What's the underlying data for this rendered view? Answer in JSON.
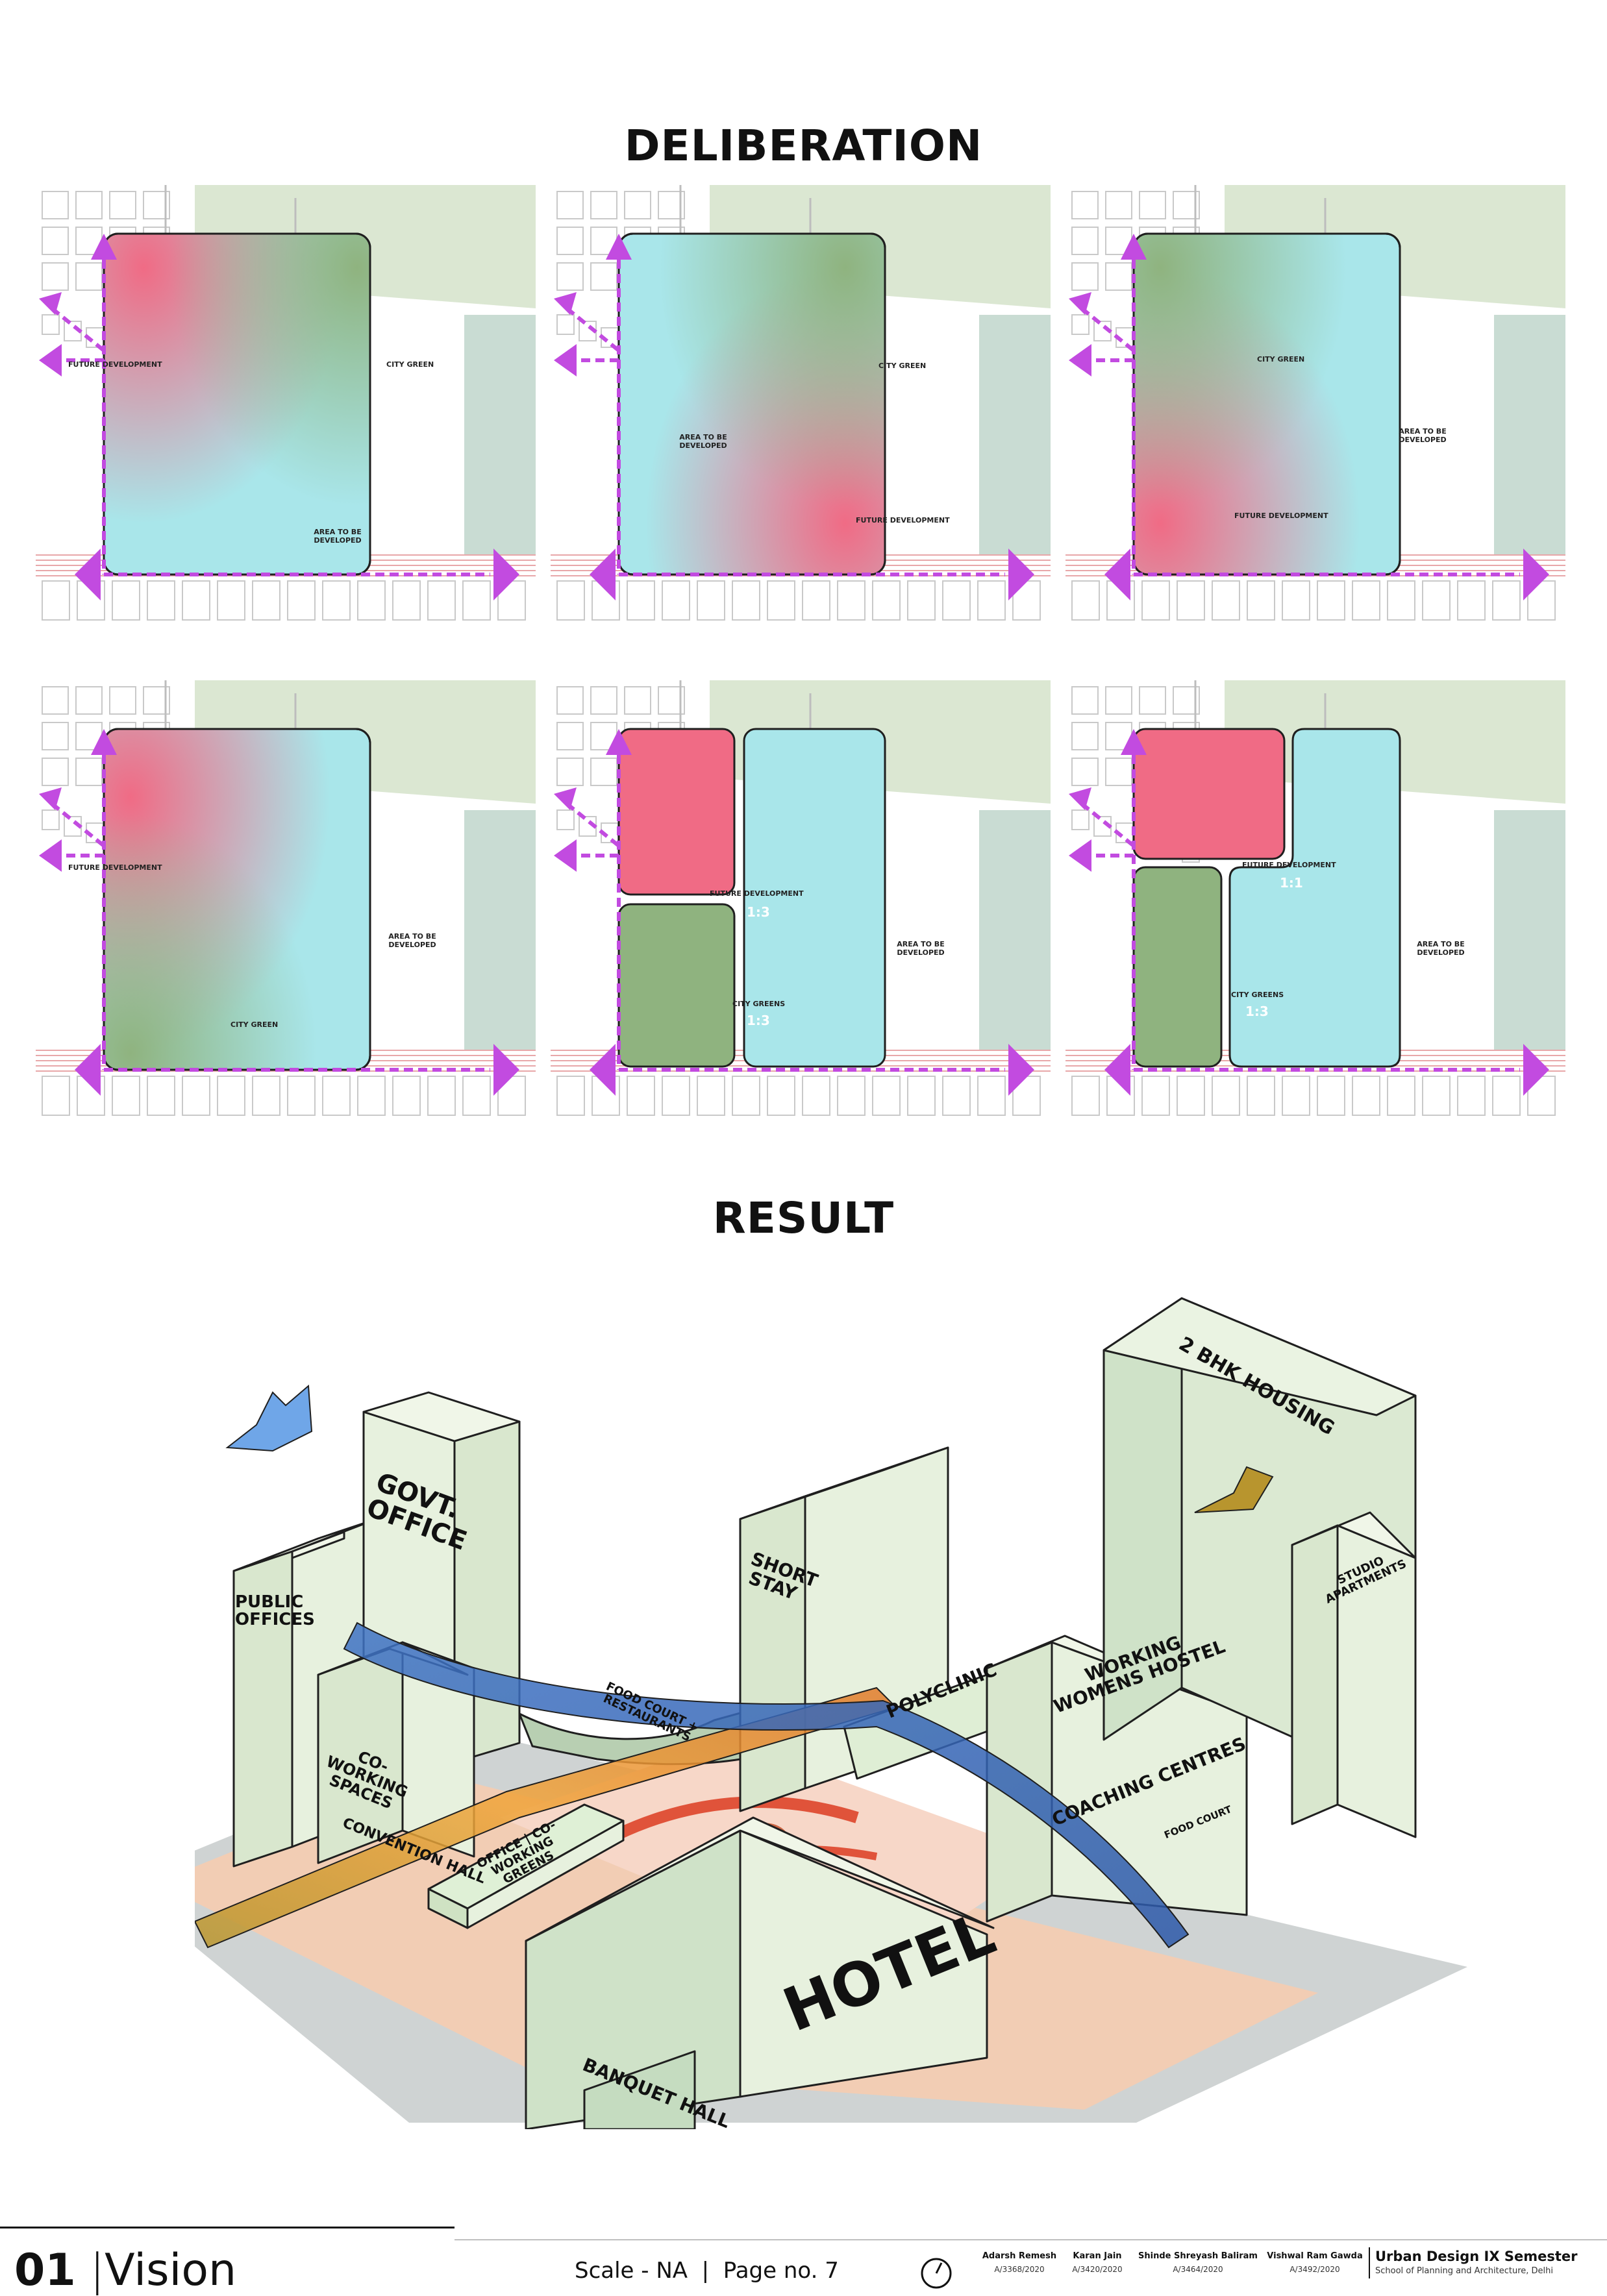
{
  "headings": {
    "deliberation": "DELIBERATION",
    "result": "RESULT"
  },
  "colors": {
    "future_development": "#f06b85",
    "city_green": "#8fb37f",
    "area_to_be_developed": "#a9e6ea",
    "arrow": "#c24be0",
    "building": "#e3efd8",
    "outline": "#1f1f1f"
  },
  "panels": [
    {
      "labels": {
        "future": "FUTURE DEVELOPMENT",
        "green": "CITY GREEN",
        "area": "AREA TO BE DEVELOPED"
      }
    },
    {
      "labels": {
        "green": "CITY GREEN",
        "area": "AREA TO BE DEVELOPED",
        "future": "FUTURE DEVELOPMENT"
      }
    },
    {
      "labels": {
        "green": "CITY GREEN",
        "area": "AREA TO BE DEVELOPED",
        "future": "FUTURE DEVELOPMENT"
      }
    },
    {
      "labels": {
        "future": "FUTURE DEVELOPMENT",
        "area": "AREA TO BE DEVELOPED",
        "green": "CITY GREEN"
      }
    },
    {
      "labels": {
        "future": "FUTURE DEVELOPMENT",
        "future_ratio": "1:3",
        "green": "CITY GREENS",
        "green_ratio": "1:3",
        "area": "AREA TO BE DEVELOPED"
      }
    },
    {
      "labels": {
        "future": "FUTURE DEVELOPMENT",
        "future_ratio": "1:1",
        "green": "CITY GREENS",
        "green_ratio": "1:3",
        "area": "AREA TO BE DEVELOPED"
      }
    }
  ],
  "result": {
    "buildings": {
      "public_offices": "PUBLIC OFFICES",
      "govt_office": "GOVT. OFFICE",
      "short_stay": "SHORT STAY",
      "polyclinic": "POLYCLINIC",
      "food_court_restaurants": "FOOD COURT + RESTAURANTS",
      "housing": "2 BHK HOUSING",
      "studio": "STUDIO APARTMENTS",
      "working_womens_hostel": "WORKING WOMENS HOSTEL",
      "coaching_centres": "COACHING CENTRES",
      "food_court": "FOOD COURT",
      "co_working_spaces": "CO-WORKING SPACES",
      "convention_hall": "CONVENTION HALL",
      "office_coworking_greens": "OFFICE | CO-WORKING GREENS",
      "hotel": "HOTEL",
      "banquet_hall": "BANQUET HALL"
    }
  },
  "footer": {
    "number": "01",
    "title": "Vision",
    "scale": "Scale - NA",
    "page": "Page no. 7",
    "students": [
      {
        "name": "Adarsh Remesh",
        "roll": "A/3368/2020"
      },
      {
        "name": "Karan Jain",
        "roll": "A/3420/2020"
      },
      {
        "name": "Shinde Shreyash Baliram",
        "roll": "A/3464/2020"
      },
      {
        "name": "Vishwal Ram Gawda",
        "roll": "A/3492/2020"
      }
    ],
    "course": "Urban Design IX Semester",
    "school": "School of Planning and Architecture, Delhi"
  }
}
